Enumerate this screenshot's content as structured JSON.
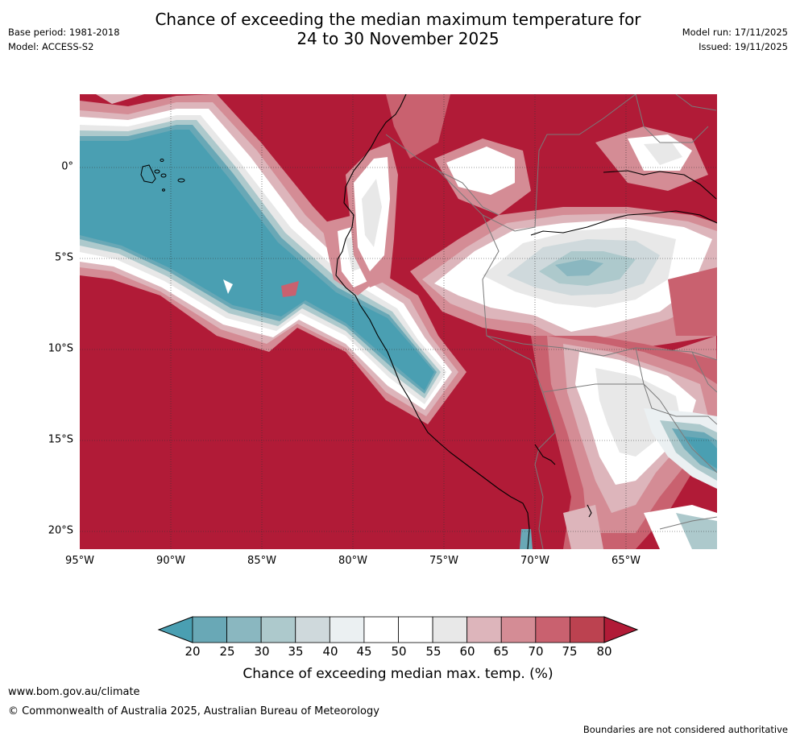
{
  "title": {
    "line1": "Chance of exceeding the median maximum temperature for",
    "line2": "24 to 30 November 2025"
  },
  "meta": {
    "base_period": "Base period: 1981-2018",
    "model": "Model: ACCESS-S2",
    "model_run": "Model run: 17/11/2025",
    "issued": "Issued: 19/11/2025"
  },
  "map": {
    "lat_labels": [
      "0°",
      "5°S",
      "10°S",
      "15°S",
      "20°S"
    ],
    "lon_labels": [
      "95°W",
      "90°W",
      "85°W",
      "80°W",
      "75°W",
      "70°W",
      "65°W"
    ]
  },
  "colorbar": {
    "ticks": [
      "20",
      "25",
      "30",
      "35",
      "40",
      "45",
      "50",
      "55",
      "60",
      "65",
      "70",
      "75",
      "80"
    ],
    "colors": [
      "#4a9fb2",
      "#69a8b6",
      "#8ab7c0",
      "#adc9cc",
      "#cfd9dc",
      "#ebf0f2",
      "#ffffff",
      "#ffffff",
      "#e8e8e8",
      "#ddb5bb",
      "#d48c95",
      "#c9616f",
      "#bc4250",
      "#b11b37"
    ],
    "label": "Chance of exceeding median max. temp. (%)"
  },
  "footer": {
    "url": "www.bom.gov.au/climate",
    "copyright": "© Commonwealth of Australia 2025, Australian Bureau of Meteorology",
    "disclaimer": "Boundaries are not considered authoritative"
  }
}
